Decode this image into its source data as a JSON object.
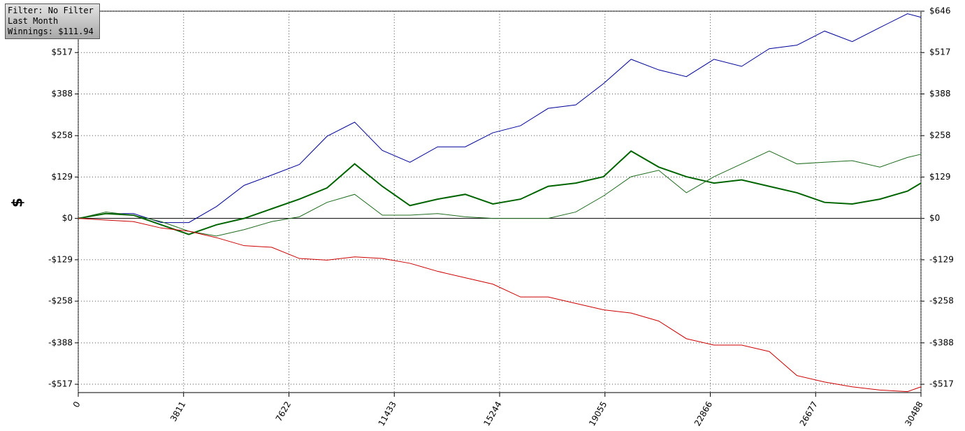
{
  "chart_data": {
    "type": "line",
    "ylabel": "$",
    "annotations": [
      "Filter: No Filter",
      "Last Month",
      "Winnings: $111.94"
    ],
    "x": [
      0,
      1000,
      2000,
      3000,
      4000,
      5000,
      6000,
      7000,
      8000,
      9000,
      10000,
      11000,
      12000,
      13000,
      14000,
      15000,
      16000,
      17000,
      18000,
      19000,
      20000,
      21000,
      22000,
      23000,
      24000,
      25000,
      26000,
      27000,
      28000,
      29000,
      30000,
      30488
    ],
    "series": [
      {
        "color": "#000099",
        "width": 1,
        "values": [
          0,
          15,
          15,
          -13,
          -13,
          37,
          103,
          135,
          168,
          256,
          300,
          212,
          175,
          223,
          223,
          267,
          289,
          343,
          354,
          420,
          496,
          463,
          442,
          496,
          474,
          529,
          540,
          584,
          551,
          595,
          638,
          627
        ]
      },
      {
        "color": "#006400",
        "width": 2,
        "values": [
          0,
          15,
          10,
          -20,
          -50,
          -20,
          0,
          30,
          60,
          95,
          170,
          100,
          40,
          60,
          75,
          45,
          60,
          100,
          110,
          130,
          210,
          160,
          130,
          110,
          120,
          100,
          80,
          50,
          45,
          60,
          85,
          110
        ]
      },
      {
        "color": "#1e6b1e",
        "width": 1,
        "values": [
          0,
          20,
          10,
          -10,
          -40,
          -55,
          -35,
          -10,
          5,
          50,
          75,
          10,
          10,
          15,
          5,
          0,
          0,
          0,
          20,
          70,
          130,
          150,
          80,
          130,
          170,
          210,
          170,
          175,
          180,
          160,
          190,
          200
        ]
      },
      {
        "color": "#cc0000",
        "width": 1,
        "values": [
          0,
          -5,
          -10,
          -30,
          -40,
          -60,
          -85,
          -90,
          -125,
          -130,
          -120,
          -125,
          -140,
          -165,
          -185,
          -205,
          -245,
          -245,
          -265,
          -285,
          -295,
          -320,
          -375,
          -395,
          -395,
          -415,
          -490,
          -510,
          -525,
          -535,
          -540,
          -525
        ]
      }
    ],
    "xlim": [
      0,
      30488
    ],
    "xticks": [
      0,
      3811,
      7622,
      11433,
      15244,
      19055,
      22866,
      26677,
      30488
    ],
    "ylim": [
      -543,
      646
    ],
    "yticks": [
      {
        "value": -517,
        "label": "-$517"
      },
      {
        "value": -388,
        "label": "-$388"
      },
      {
        "value": -258,
        "label": "-$258"
      },
      {
        "value": -129,
        "label": "-$129"
      },
      {
        "value": 0,
        "label": "$0"
      },
      {
        "value": 129,
        "label": "$129"
      },
      {
        "value": 258,
        "label": "$258"
      },
      {
        "value": 388,
        "label": "$388"
      },
      {
        "value": 517,
        "label": "$517"
      },
      {
        "value": 646,
        "label": "$646"
      }
    ],
    "grid": true
  }
}
